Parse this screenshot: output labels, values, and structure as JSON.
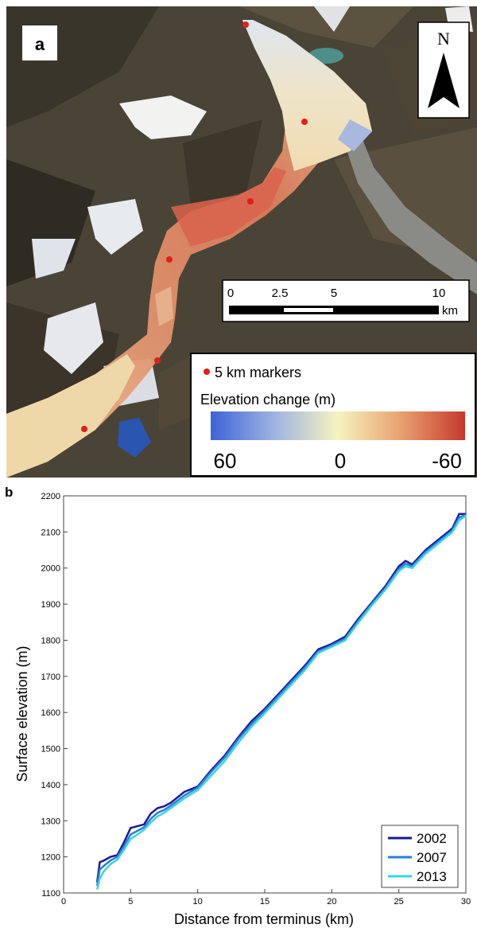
{
  "panel_a": {
    "label": "a",
    "north_label": "N",
    "scale_bar": {
      "ticks": [
        "0",
        "2.5",
        "5",
        "10"
      ],
      "unit": "km"
    },
    "legend": {
      "marker_label": "5 km markers",
      "colorbar_title": "Elevation change (m)",
      "colorbar_ticks": [
        "60",
        "0",
        "-60"
      ],
      "colors": {
        "positive": "#3d63d6",
        "zero": "#f6f3bf",
        "negative": "#c5392e"
      }
    },
    "marker_color": "#e0201c"
  },
  "panel_b": {
    "label": "b"
  },
  "chart_data": {
    "type": "line",
    "xlabel": "Distance from terminus (km)",
    "ylabel": "Surface elevation (m)",
    "xlim": [
      0,
      30
    ],
    "ylim": [
      1100,
      2200
    ],
    "xticks": [
      0,
      5,
      10,
      15,
      20,
      25,
      30
    ],
    "yticks": [
      1100,
      1200,
      1300,
      1400,
      1500,
      1600,
      1700,
      1800,
      1900,
      2000,
      2100,
      2200
    ],
    "grid": false,
    "legend_position": "bottom-right",
    "series": [
      {
        "name": "2002",
        "color": "#1a1a9a",
        "x": [
          2.5,
          2.7,
          3.0,
          3.5,
          4.0,
          4.5,
          5.0,
          5.5,
          6.0,
          6.5,
          7.0,
          7.5,
          8.0,
          9.0,
          10.0,
          11.0,
          12.0,
          13.0,
          14.0,
          15.0,
          16.0,
          17.0,
          18.0,
          19.0,
          20.0,
          21.0,
          22.0,
          23.0,
          24.0,
          25.0,
          25.5,
          26.0,
          27.0,
          28.0,
          29.0,
          29.5,
          30.0
        ],
        "y": [
          1130,
          1185,
          1190,
          1200,
          1205,
          1240,
          1280,
          1285,
          1290,
          1320,
          1335,
          1340,
          1350,
          1380,
          1395,
          1440,
          1480,
          1530,
          1575,
          1610,
          1650,
          1690,
          1730,
          1775,
          1790,
          1810,
          1860,
          1905,
          1950,
          2005,
          2020,
          2010,
          2050,
          2080,
          2110,
          2150,
          2150
        ]
      },
      {
        "name": "2007",
        "color": "#2a7fd2",
        "x": [
          2.5,
          2.7,
          3.0,
          3.5,
          4.0,
          4.5,
          5.0,
          5.5,
          6.0,
          6.5,
          7.0,
          7.5,
          8.0,
          9.0,
          10.0,
          11.0,
          12.0,
          13.0,
          14.0,
          15.0,
          16.0,
          17.0,
          18.0,
          19.0,
          20.0,
          21.0,
          22.0,
          23.0,
          24.0,
          25.0,
          25.5,
          26.0,
          27.0,
          28.0,
          29.0,
          29.5,
          30.0
        ],
        "y": [
          1120,
          1165,
          1175,
          1190,
          1200,
          1230,
          1262,
          1272,
          1282,
          1305,
          1322,
          1330,
          1342,
          1370,
          1392,
          1435,
          1475,
          1525,
          1568,
          1605,
          1645,
          1685,
          1725,
          1770,
          1786,
          1805,
          1855,
          1902,
          1945,
          1998,
          2012,
          2005,
          2045,
          2075,
          2105,
          2140,
          2148
        ]
      },
      {
        "name": "2013",
        "color": "#3ad4e0",
        "x": [
          2.5,
          2.7,
          3.0,
          3.5,
          4.0,
          4.5,
          5.0,
          5.5,
          6.0,
          6.5,
          7.0,
          7.5,
          8.0,
          9.0,
          10.0,
          11.0,
          12.0,
          13.0,
          14.0,
          15.0,
          16.0,
          17.0,
          18.0,
          19.0,
          20.0,
          21.0,
          22.0,
          23.0,
          24.0,
          25.0,
          25.5,
          26.0,
          27.0,
          28.0,
          29.0,
          29.5,
          30.0
        ],
        "y": [
          1110,
          1140,
          1160,
          1180,
          1192,
          1220,
          1250,
          1262,
          1275,
          1295,
          1312,
          1322,
          1335,
          1362,
          1385,
          1425,
          1465,
          1515,
          1560,
          1598,
          1638,
          1678,
          1718,
          1765,
          1782,
          1800,
          1850,
          1897,
          1940,
          1992,
          2005,
          2000,
          2040,
          2070,
          2100,
          2132,
          2145
        ]
      }
    ]
  }
}
